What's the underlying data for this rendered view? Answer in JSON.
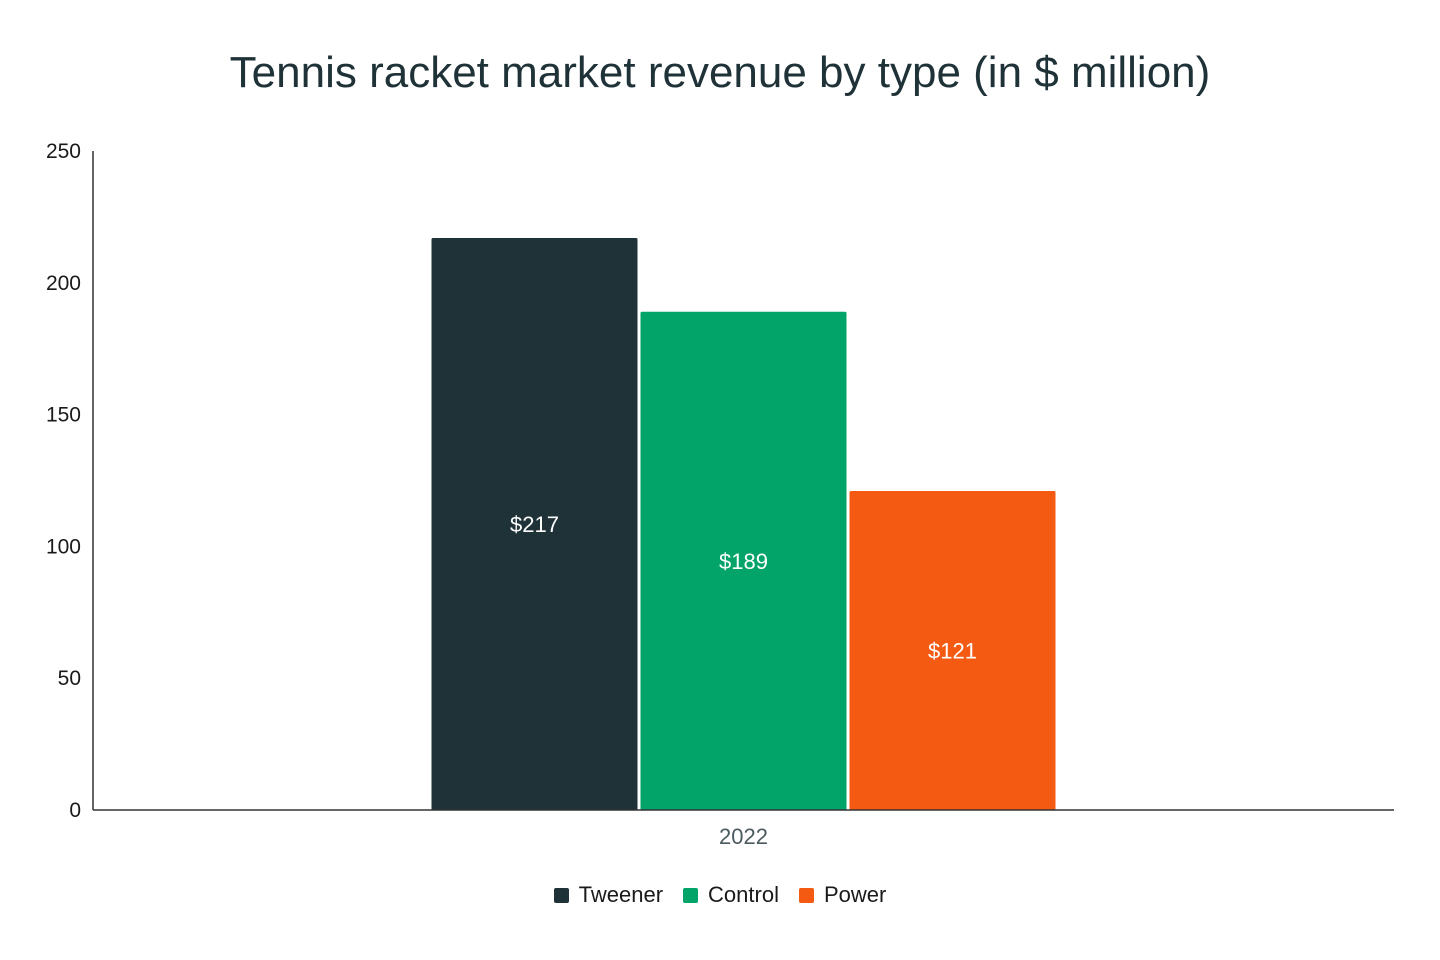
{
  "chart_data": {
    "type": "bar",
    "title": "Tennis racket market revenue by type (in $ million)",
    "xlabel": "",
    "ylabel": "",
    "categories": [
      "2022"
    ],
    "ylim": [
      0,
      250
    ],
    "yticks": [
      0,
      50,
      100,
      150,
      200,
      250
    ],
    "grid": false,
    "legend_position": "bottom",
    "series": [
      {
        "name": "Tweener",
        "values": [
          217
        ],
        "color": "#1e3237",
        "label": "$217"
      },
      {
        "name": "Control",
        "values": [
          189
        ],
        "color": "#02a46a",
        "label": "$189"
      },
      {
        "name": "Power",
        "values": [
          121
        ],
        "color": "#f55a13",
        "label": "$121"
      }
    ]
  }
}
